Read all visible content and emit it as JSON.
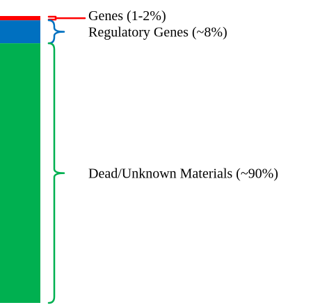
{
  "chart_data": {
    "type": "bar",
    "orientation": "vertical-stacked",
    "categories": [
      "Genes (1-2%)",
      "Regulatory Genes (~8%)",
      "Dead/Unknown Materials (~90%)"
    ],
    "series": [
      {
        "label": "Genes (1-2%)",
        "value": 1.5,
        "color": "#ff0000"
      },
      {
        "label": "Regulatory Genes (~8%)",
        "value": 8,
        "color": "#0070c0"
      },
      {
        "label": "Dead/Unknown Materials (~90%)",
        "value": 90.5,
        "color": "#00b050"
      }
    ],
    "total": 100,
    "bracket_colors": [
      "#ff0000",
      "#0070c0",
      "#00b050"
    ],
    "grid": false,
    "legend": "none"
  }
}
